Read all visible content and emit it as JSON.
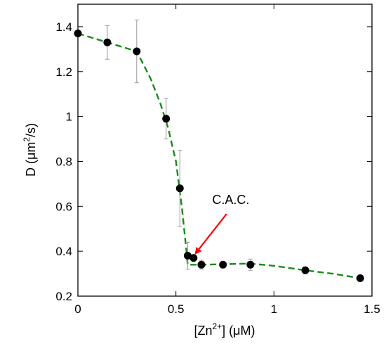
{
  "chart_data": {
    "type": "scatter",
    "xlabel": {
      "prefix": "[Zn",
      "sup": "2+",
      "suffix": "] (μM)"
    },
    "ylabel": {
      "prefix": "D (μm",
      "sup": "2",
      "suffix": "/s)"
    },
    "xlim": [
      0,
      1.5
    ],
    "ylim": [
      0.2,
      1.5
    ],
    "xticks": [
      0,
      0.5,
      1,
      1.5
    ],
    "xtick_labels": [
      "0",
      "0.5",
      "1",
      "1.5"
    ],
    "yticks": [
      0.2,
      0.4,
      0.6,
      0.8,
      1,
      1.2,
      1.4
    ],
    "ytick_labels": [
      "0.2",
      "0.4",
      "0.6",
      "0.8",
      "1",
      "1.2",
      "1.4"
    ],
    "grid": false,
    "legend": "none",
    "points": [
      {
        "x": 0.0,
        "y": 1.37,
        "err": 0.0
      },
      {
        "x": 0.15,
        "y": 1.33,
        "err": 0.075
      },
      {
        "x": 0.3,
        "y": 1.29,
        "err": 0.14
      },
      {
        "x": 0.45,
        "y": 0.99,
        "err": 0.09
      },
      {
        "x": 0.52,
        "y": 0.68,
        "err": 0.17
      },
      {
        "x": 0.56,
        "y": 0.38,
        "err": 0.06
      },
      {
        "x": 0.59,
        "y": 0.37,
        "err": 0.01
      },
      {
        "x": 0.63,
        "y": 0.34,
        "err": 0.02
      },
      {
        "x": 0.74,
        "y": 0.34,
        "err": 0.01
      },
      {
        "x": 0.88,
        "y": 0.34,
        "err": 0.025
      },
      {
        "x": 1.16,
        "y": 0.315,
        "err": 0.015
      },
      {
        "x": 1.44,
        "y": 0.28,
        "err": 0.01
      }
    ],
    "fit_curve": {
      "style": "dashed",
      "color": "#1a8a1a",
      "points": [
        [
          0,
          1.37
        ],
        [
          0.15,
          1.33
        ],
        [
          0.3,
          1.29
        ],
        [
          0.37,
          1.17
        ],
        [
          0.42,
          1.06
        ],
        [
          0.46,
          0.95
        ],
        [
          0.5,
          0.8
        ],
        [
          0.53,
          0.6
        ],
        [
          0.555,
          0.39
        ],
        [
          0.56,
          0.34
        ],
        [
          0.63,
          0.34
        ],
        [
          0.88,
          0.345
        ],
        [
          1.0,
          0.335
        ],
        [
          1.16,
          0.315
        ],
        [
          1.3,
          0.3
        ],
        [
          1.44,
          0.28
        ]
      ]
    },
    "annotations": [
      {
        "text": "C.A.C.",
        "x": 0.78,
        "y": 0.61,
        "arrow_to": [
          0.6,
          0.39
        ],
        "arrow_color": "#ff0000"
      }
    ],
    "colors": {
      "marker": "#000000",
      "errorbar": "#999999",
      "axes": "#000000"
    }
  }
}
